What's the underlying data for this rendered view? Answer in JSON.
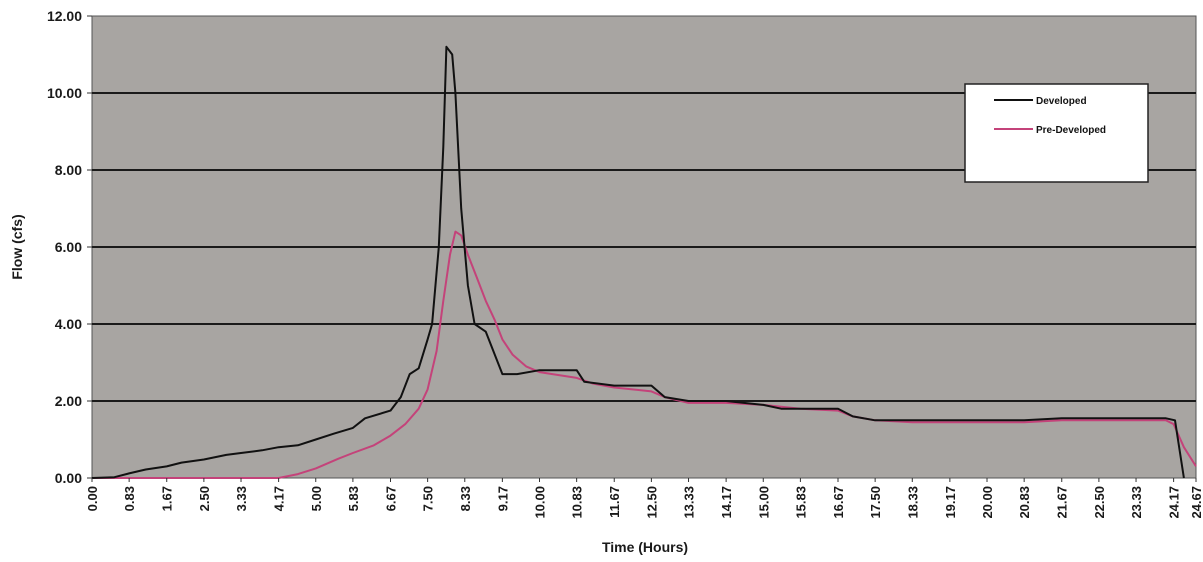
{
  "chart_data": {
    "type": "line",
    "title": "",
    "xlabel": "Time (Hours)",
    "ylabel": "Flow (cfs)",
    "ylim": [
      0,
      12
    ],
    "xlim": [
      0,
      24.67
    ],
    "grid": true,
    "legend_position": "top-right",
    "plot_background": "#a8a5a2",
    "y_ticks": [
      "0.00",
      "2.00",
      "4.00",
      "6.00",
      "8.00",
      "10.00",
      "12.00"
    ],
    "x_ticks": [
      "0.00",
      "0.83",
      "1.67",
      "2.50",
      "3.33",
      "4.17",
      "5.00",
      "5.83",
      "6.67",
      "7.50",
      "8.33",
      "9.17",
      "10.00",
      "10.83",
      "11.67",
      "12.50",
      "13.33",
      "14.17",
      "15.00",
      "15.83",
      "16.67",
      "17.50",
      "18.33",
      "19.17",
      "20.00",
      "20.83",
      "21.67",
      "22.50",
      "23.33",
      "24.17",
      "24.67"
    ],
    "series": [
      {
        "name": "Developed",
        "color": "#111111",
        "points": [
          [
            0.0,
            0.0
          ],
          [
            0.5,
            0.02
          ],
          [
            0.83,
            0.12
          ],
          [
            1.2,
            0.22
          ],
          [
            1.67,
            0.3
          ],
          [
            2.0,
            0.4
          ],
          [
            2.5,
            0.48
          ],
          [
            3.0,
            0.6
          ],
          [
            3.33,
            0.65
          ],
          [
            3.8,
            0.72
          ],
          [
            4.17,
            0.8
          ],
          [
            4.6,
            0.85
          ],
          [
            5.0,
            1.0
          ],
          [
            5.4,
            1.15
          ],
          [
            5.83,
            1.3
          ],
          [
            6.1,
            1.55
          ],
          [
            6.67,
            1.75
          ],
          [
            6.9,
            2.1
          ],
          [
            7.1,
            2.7
          ],
          [
            7.3,
            2.85
          ],
          [
            7.5,
            3.6
          ],
          [
            7.6,
            4.0
          ],
          [
            7.75,
            6.0
          ],
          [
            7.85,
            8.6
          ],
          [
            7.92,
            11.2
          ],
          [
            8.05,
            11.0
          ],
          [
            8.12,
            10.0
          ],
          [
            8.25,
            7.0
          ],
          [
            8.4,
            5.0
          ],
          [
            8.55,
            4.0
          ],
          [
            8.8,
            3.8
          ],
          [
            9.0,
            3.2
          ],
          [
            9.17,
            2.7
          ],
          [
            9.5,
            2.7
          ],
          [
            10.0,
            2.8
          ],
          [
            10.5,
            2.8
          ],
          [
            10.83,
            2.8
          ],
          [
            11.0,
            2.5
          ],
          [
            11.67,
            2.4
          ],
          [
            12.5,
            2.4
          ],
          [
            12.8,
            2.1
          ],
          [
            13.33,
            2.0
          ],
          [
            14.17,
            2.0
          ],
          [
            15.0,
            1.9
          ],
          [
            15.4,
            1.8
          ],
          [
            15.83,
            1.8
          ],
          [
            16.67,
            1.8
          ],
          [
            17.0,
            1.6
          ],
          [
            17.5,
            1.5
          ],
          [
            18.33,
            1.5
          ],
          [
            19.17,
            1.5
          ],
          [
            20.0,
            1.5
          ],
          [
            20.83,
            1.5
          ],
          [
            21.67,
            1.55
          ],
          [
            22.5,
            1.55
          ],
          [
            23.33,
            1.55
          ],
          [
            24.0,
            1.55
          ],
          [
            24.2,
            1.5
          ],
          [
            24.4,
            0.0
          ]
        ]
      },
      {
        "name": "Pre-Developed",
        "color": "#c4437a",
        "points": [
          [
            0.0,
            0.0
          ],
          [
            3.33,
            0.0
          ],
          [
            4.17,
            0.0
          ],
          [
            4.6,
            0.1
          ],
          [
            5.0,
            0.25
          ],
          [
            5.5,
            0.5
          ],
          [
            5.83,
            0.65
          ],
          [
            6.3,
            0.85
          ],
          [
            6.67,
            1.1
          ],
          [
            7.0,
            1.4
          ],
          [
            7.3,
            1.8
          ],
          [
            7.5,
            2.3
          ],
          [
            7.7,
            3.3
          ],
          [
            7.85,
            4.6
          ],
          [
            8.0,
            5.8
          ],
          [
            8.12,
            6.4
          ],
          [
            8.25,
            6.3
          ],
          [
            8.4,
            5.8
          ],
          [
            8.6,
            5.2
          ],
          [
            8.8,
            4.6
          ],
          [
            9.0,
            4.1
          ],
          [
            9.17,
            3.6
          ],
          [
            9.4,
            3.2
          ],
          [
            9.7,
            2.9
          ],
          [
            10.0,
            2.75
          ],
          [
            10.83,
            2.6
          ],
          [
            11.2,
            2.45
          ],
          [
            11.67,
            2.35
          ],
          [
            12.5,
            2.25
          ],
          [
            12.8,
            2.1
          ],
          [
            13.33,
            1.95
          ],
          [
            14.17,
            1.95
          ],
          [
            15.0,
            1.9
          ],
          [
            15.83,
            1.8
          ],
          [
            16.67,
            1.75
          ],
          [
            17.0,
            1.6
          ],
          [
            17.5,
            1.5
          ],
          [
            18.33,
            1.45
          ],
          [
            19.17,
            1.45
          ],
          [
            20.0,
            1.45
          ],
          [
            20.83,
            1.45
          ],
          [
            21.67,
            1.5
          ],
          [
            22.5,
            1.5
          ],
          [
            23.33,
            1.5
          ],
          [
            24.0,
            1.5
          ],
          [
            24.17,
            1.4
          ],
          [
            24.4,
            0.8
          ],
          [
            24.67,
            0.3
          ]
        ]
      }
    ]
  }
}
